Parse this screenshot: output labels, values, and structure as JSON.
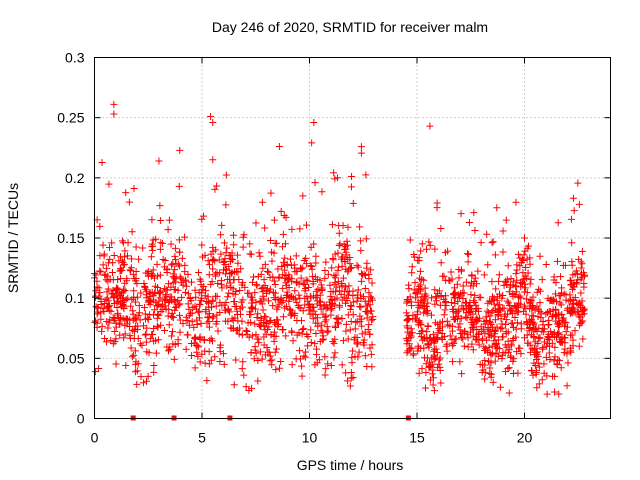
{
  "chart_data": {
    "type": "scatter",
    "title": "Day 246 of 2020, SRMTID for receiver malm",
    "xlabel": "GPS time / hours",
    "ylabel": "SRMTID / TECUs",
    "xlim": [
      0,
      24
    ],
    "ylim": [
      0,
      0.3
    ],
    "xticks": [
      "0",
      "5",
      "10",
      "15",
      "20"
    ],
    "xtick_values": [
      0,
      5,
      10,
      15,
      20
    ],
    "yticks": [
      "0",
      "0.05",
      "0.1",
      "0.15",
      "0.2",
      "0.25",
      "0.3"
    ],
    "ytick_values": [
      0,
      0.05,
      0.1,
      0.15,
      0.2,
      0.25,
      0.3
    ],
    "grid": true,
    "marker": "+",
    "series_color": "#ff0000",
    "data_gap": [
      13.0,
      14.5
    ],
    "zero_markers_x": [
      1.8,
      3.7,
      6.3,
      14.6
    ],
    "notable_points": [
      {
        "x": 0.9,
        "y": 0.261
      },
      {
        "x": 0.9,
        "y": 0.253
      },
      {
        "x": 5.4,
        "y": 0.251
      },
      {
        "x": 5.5,
        "y": 0.246
      },
      {
        "x": 5.5,
        "y": 0.215
      },
      {
        "x": 10.2,
        "y": 0.246
      },
      {
        "x": 15.6,
        "y": 0.243
      },
      {
        "x": 8.6,
        "y": 0.226
      },
      {
        "x": 10.1,
        "y": 0.229
      },
      {
        "x": 20.0,
        "y": 0.15
      },
      {
        "x": 11.9,
        "y": 0.027
      },
      {
        "x": 21.4,
        "y": 0.022
      },
      {
        "x": 6.5,
        "y": 0.028
      }
    ],
    "scatter_segments": [
      {
        "x_start": 0.0,
        "x_end": 13.0,
        "y_mean": 0.095,
        "y_spread": 0.045,
        "count": 1200
      },
      {
        "x_start": 14.5,
        "x_end": 22.8,
        "y_mean": 0.082,
        "y_spread": 0.04,
        "count": 900
      }
    ]
  }
}
